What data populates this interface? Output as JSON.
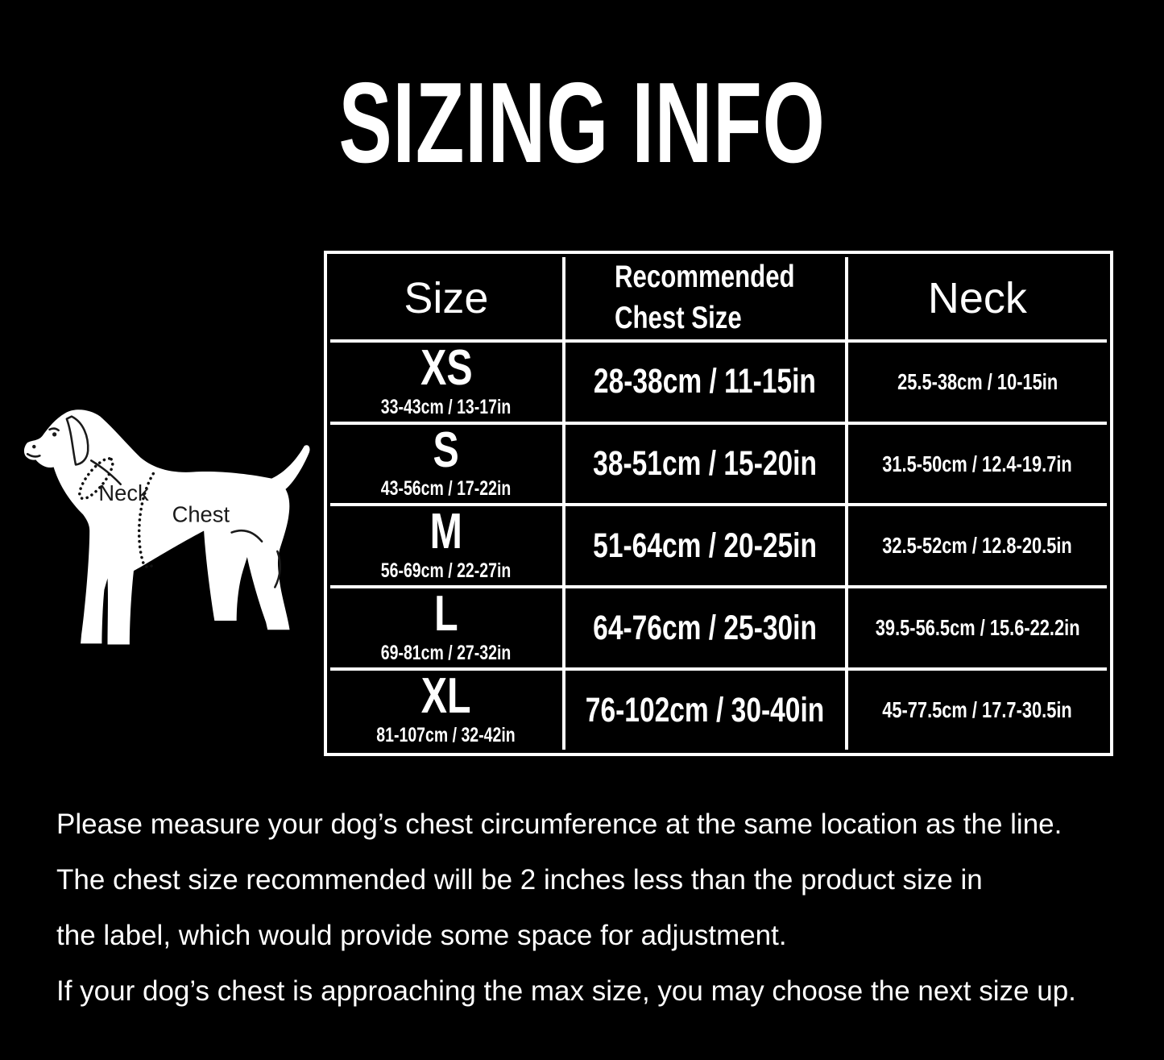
{
  "title": "SIZING INFO",
  "diagram": {
    "neck_label": "Neck",
    "chest_label": "Chest"
  },
  "table": {
    "header": {
      "size": "Size",
      "chest_line1": "Recommended",
      "chest_line2": "Chest Size",
      "neck": "Neck"
    },
    "rows": [
      {
        "size": "XS",
        "size_sub": "33-43cm / 13-17in",
        "chest": "28-38cm / 11-15in",
        "neck": "25.5-38cm / 10-15in"
      },
      {
        "size": "S",
        "size_sub": "43-56cm / 17-22in",
        "chest": "38-51cm / 15-20in",
        "neck": "31.5-50cm / 12.4-19.7in"
      },
      {
        "size": "M",
        "size_sub": "56-69cm / 22-27in",
        "chest": "51-64cm / 20-25in",
        "neck": "32.5-52cm / 12.8-20.5in"
      },
      {
        "size": "L",
        "size_sub": "69-81cm / 27-32in",
        "chest": "64-76cm / 25-30in",
        "neck": "39.5-56.5cm / 15.6-22.2in"
      },
      {
        "size": "XL",
        "size_sub": "81-107cm / 32-42in",
        "chest": "76-102cm / 30-40in",
        "neck": "45-77.5cm / 17.7-30.5in"
      }
    ]
  },
  "notes": [
    "Please measure your dog’s chest circumference at the same location as the line.",
    "The chest size recommended will be 2 inches less than the product size in",
    "the label, which would provide some space for adjustment.",
    "If your dog’s chest is approaching the max size, you may choose the next size up."
  ],
  "colors": {
    "background": "#000000",
    "text": "#ffffff",
    "table_border": "#ffffff",
    "diagram_fill": "#ffffff",
    "diagram_ink": "#1a1a1a"
  }
}
